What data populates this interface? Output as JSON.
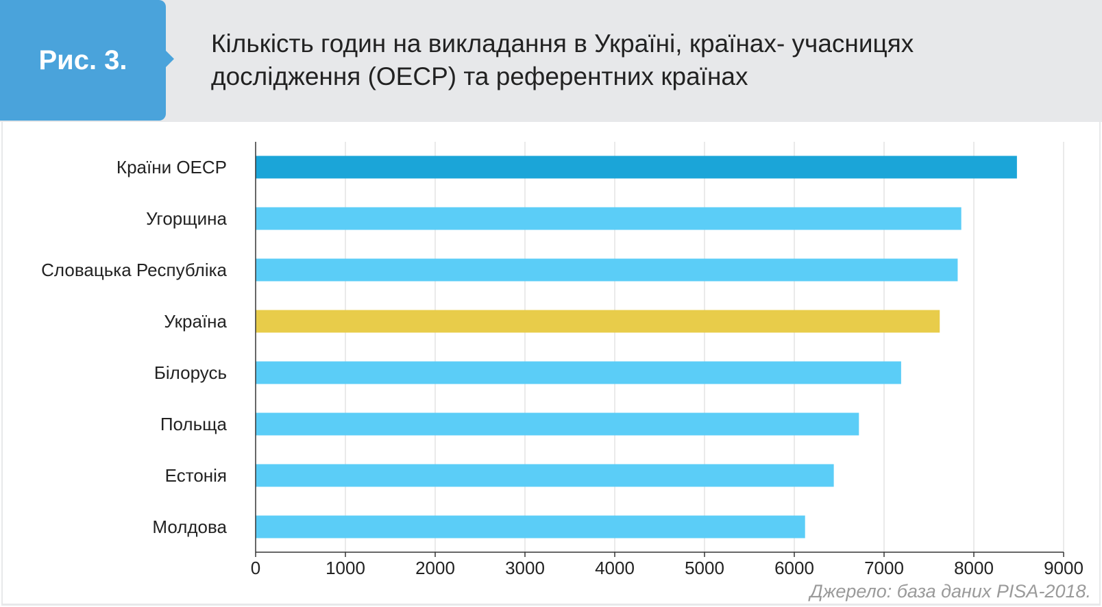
{
  "figure": {
    "badge": "Рис. 3.",
    "title": "Кількість годин на викладання  в Україні, країнах- учасницях дослідження (ОЕСР) та референтних країнах",
    "source": "Джерело: база даних PISA-2018."
  },
  "colors": {
    "header_bg": "#e7e8ea",
    "badge_bg": "#4aa3db",
    "bar_oecd": "#1ba5d8",
    "bar_default": "#5bcdf7",
    "bar_ukraine": "#e8cc4a",
    "grid": "#d6d6d6",
    "axis": "#333333"
  },
  "chart_data": {
    "type": "bar",
    "orientation": "horizontal",
    "categories": [
      "Країни ОЕСР",
      "Угорщина",
      "Словацька Республіка",
      "Україна",
      "Білорусь",
      "Польща",
      "Естонія",
      "Молдова"
    ],
    "values": [
      8480,
      7860,
      7820,
      7620,
      7190,
      6720,
      6440,
      6120
    ],
    "highlight": {
      "Країни ОЕСР": "oecd",
      "Україна": "ukraine"
    },
    "xlim": [
      0,
      9000
    ],
    "xticks": [
      0,
      1000,
      2000,
      3000,
      4000,
      5000,
      6000,
      7000,
      8000,
      9000
    ],
    "grid": true,
    "xlabel": "",
    "ylabel": ""
  }
}
